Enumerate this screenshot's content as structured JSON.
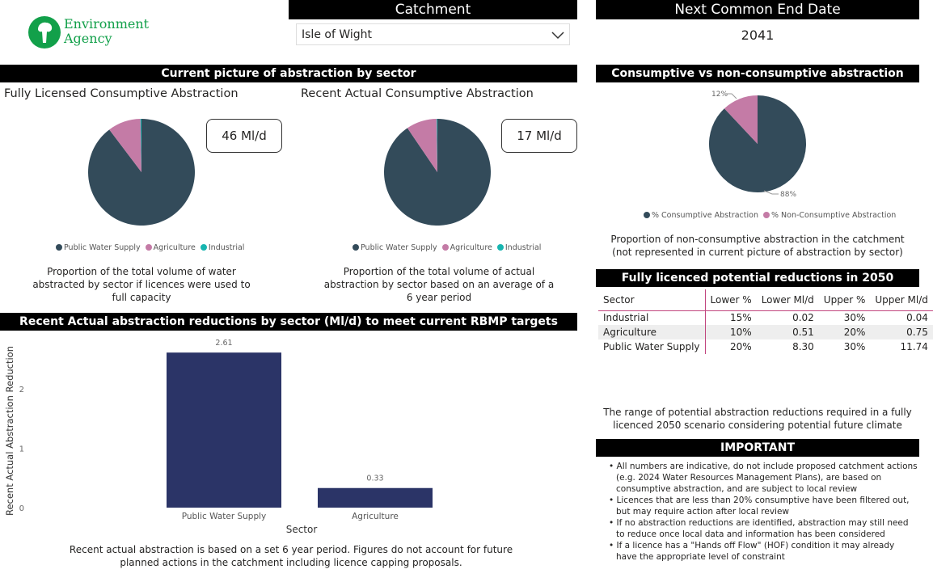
{
  "logo": {
    "line1": "Environment",
    "line2": "Agency"
  },
  "catchment": {
    "title": "Catchment",
    "selected": "Isle of Wight"
  },
  "end_date": {
    "title": "Next Common End Date",
    "value": "2041"
  },
  "current_picture": {
    "title": "Current picture of abstraction by sector",
    "licensed": {
      "title": "Fully Licensed Consumptive Abstraction",
      "kpi": "46 Ml/d",
      "caption": "Proportion of the total volume of water abstracted by sector if licences were used to full capacity",
      "slices": [
        {
          "name": "Public Water Supply",
          "pct": 89.7,
          "color": "#334b5a"
        },
        {
          "name": "Agriculture",
          "pct": 10,
          "color": "#c47ba6"
        },
        {
          "name": "Industrial",
          "pct": 0.3,
          "color": "#17b5b0"
        }
      ]
    },
    "actual": {
      "title": "Recent Actual Consumptive Abstraction",
      "kpi": "17 Ml/d",
      "caption": "Proportion of the total volume of actual abstraction by sector based on an average of a 6 year period",
      "slices": [
        {
          "name": "Public Water Supply",
          "pct": 90.5,
          "color": "#334b5a"
        },
        {
          "name": "Agriculture",
          "pct": 9.3,
          "color": "#c47ba6"
        },
        {
          "name": "Industrial",
          "pct": 0.2,
          "color": "#17b5b0"
        }
      ]
    },
    "legend": [
      "Public Water Supply",
      "Agriculture",
      "Industrial"
    ]
  },
  "consumptive": {
    "title": "Consumptive vs non-consumptive abstraction",
    "slices": [
      {
        "name": "% Consumptive Abstraction",
        "pct": 88,
        "label": "88%",
        "color": "#334b5a"
      },
      {
        "name": "% Non-Consumptive Abstraction",
        "pct": 12,
        "label": "12%",
        "color": "#c47ba6"
      }
    ],
    "caption": "Proportion of non-consumptive abstraction in the catchment (not represented in current picture of abstraction by sector)"
  },
  "reductions": {
    "title": "Fully licenced potential reductions in 2050",
    "columns": [
      "Sector",
      "Lower %",
      "Lower Ml/d",
      "Upper %",
      "Upper Ml/d"
    ],
    "rows": [
      [
        "Industrial",
        "15%",
        "0.02",
        "30%",
        "0.04"
      ],
      [
        "Agriculture",
        "10%",
        "0.51",
        "20%",
        "0.75"
      ],
      [
        "Public Water Supply",
        "20%",
        "8.30",
        "30%",
        "11.74"
      ]
    ],
    "caption": "The range of potential abstraction reductions required in a fully licenced 2050 scenario considering potential future climate"
  },
  "important": {
    "title": "IMPORTANT",
    "bullets": [
      "All numbers are indicative, do not include proposed catchment actions (e.g. 2024 Water Resources Management Plans), are based on consumptive abstraction, and are subject to local review",
      "Licences that are less than 20% consumptive have been filtered out, but may require action after local review",
      "If no abstraction reductions are identified, abstraction may still need to reduce once local data and information has been considered",
      "If a licence has a \"Hands off Flow\" (HOF) condition it may already have the appropriate level of constraint"
    ]
  },
  "bar_section": {
    "title": "Recent Actual abstraction reductions by sector (Ml/d) to meet current RBMP targets",
    "caption": "Recent actual abstraction is based on a set 6 year period. Figures do not account for future planned actions in the catchment including licence capping proposals."
  },
  "chart_data": {
    "type": "bar",
    "categories": [
      "Public Water Supply",
      "Agriculture"
    ],
    "values": [
      2.61,
      0.33
    ],
    "labels": [
      "2.61",
      "0.33"
    ],
    "xlabel": "Sector",
    "ylabel": "Recent Actual Abstraction Reduction",
    "ylim": [
      0,
      2.8
    ],
    "yticks": [
      "0",
      "1",
      "2"
    ],
    "color": "#2b3467"
  }
}
